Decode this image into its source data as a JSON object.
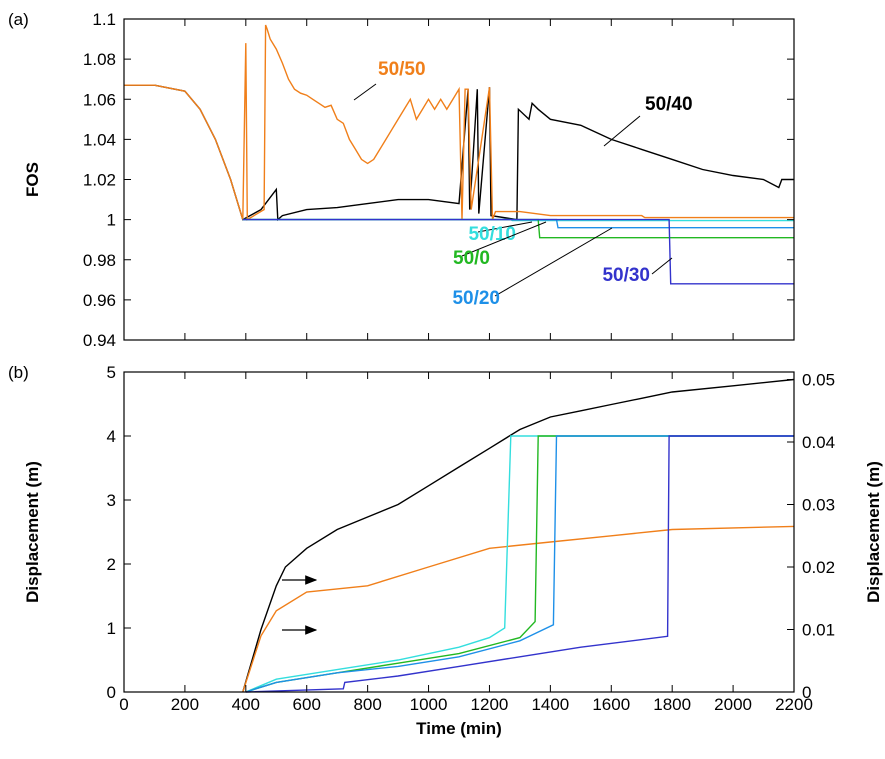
{
  "chart_data": [
    {
      "type": "line",
      "panel_label": "(a)",
      "ylabel": "FOS",
      "xlim": [
        0,
        2200
      ],
      "xticks": [
        0,
        200,
        400,
        600,
        800,
        1000,
        1200,
        1400,
        1600,
        1800,
        2000,
        2200
      ],
      "xtick_labels": false,
      "ylim": [
        0.94,
        1.1
      ],
      "yticks": [
        0.94,
        0.96,
        0.98,
        1,
        1.02,
        1.04,
        1.06,
        1.08,
        1.1
      ],
      "series": [
        {
          "name": "50/40",
          "color": "#000000",
          "x": [
            0,
            100,
            200,
            250,
            300,
            350,
            390,
            450,
            500,
            505,
            520,
            600,
            700,
            800,
            900,
            1000,
            1100,
            1130,
            1135,
            1160,
            1165,
            1200,
            1205,
            1290,
            1295,
            1330,
            1340,
            1360,
            1400,
            1500,
            1600,
            1700,
            1800,
            1900,
            2000,
            2100,
            2150,
            2160,
            2200
          ],
          "values": [
            1.067,
            1.067,
            1.064,
            1.055,
            1.04,
            1.02,
            1.0,
            1.005,
            1.015,
            1.0,
            1.002,
            1.005,
            1.006,
            1.008,
            1.01,
            1.01,
            1.008,
            1.065,
            1.005,
            1.065,
            1.003,
            1.066,
            1.002,
            1.0,
            1.055,
            1.05,
            1.058,
            1.055,
            1.05,
            1.047,
            1.04,
            1.035,
            1.03,
            1.025,
            1.022,
            1.02,
            1.016,
            1.02,
            1.02
          ]
        },
        {
          "name": "50/50",
          "color": "#f07f1a",
          "x": [
            0,
            100,
            200,
            250,
            300,
            350,
            390,
            400,
            405,
            460,
            465,
            470,
            480,
            500,
            520,
            540,
            560,
            580,
            600,
            620,
            640,
            660,
            680,
            700,
            720,
            740,
            760,
            780,
            800,
            820,
            840,
            860,
            880,
            900,
            920,
            940,
            960,
            980,
            1000,
            1020,
            1040,
            1060,
            1080,
            1100,
            1110,
            1120,
            1130,
            1140,
            1200,
            1210,
            1220,
            1300,
            1400,
            1700,
            1710,
            2200
          ],
          "values": [
            1.067,
            1.067,
            1.064,
            1.055,
            1.04,
            1.02,
            1.0,
            1.088,
            1.0,
            1.005,
            1.097,
            1.095,
            1.09,
            1.085,
            1.078,
            1.07,
            1.065,
            1.063,
            1.062,
            1.06,
            1.058,
            1.056,
            1.057,
            1.05,
            1.048,
            1.04,
            1.035,
            1.03,
            1.028,
            1.03,
            1.035,
            1.04,
            1.045,
            1.05,
            1.055,
            1.06,
            1.05,
            1.055,
            1.06,
            1.055,
            1.06,
            1.055,
            1.06,
            1.065,
            1.0,
            1.065,
            1.065,
            1.005,
            1.066,
            1.0,
            1.004,
            1.004,
            1.002,
            1.002,
            1.001,
            1.001
          ]
        },
        {
          "name": "50/10",
          "color": "#33dede",
          "x": [
            390,
            1270,
            1275,
            2200
          ],
          "values": [
            1.0,
            1.0,
            0.9995,
            0.9995
          ]
        },
        {
          "name": "50/0",
          "color": "#22b822",
          "x": [
            390,
            1360,
            1365,
            2200
          ],
          "values": [
            1.0,
            1.0,
            0.991,
            0.991
          ]
        },
        {
          "name": "50/20",
          "color": "#1e90e8",
          "x": [
            390,
            1420,
            1425,
            2200
          ],
          "values": [
            1.0,
            1.0,
            0.996,
            0.996
          ]
        },
        {
          "name": "50/30",
          "color": "#3333cc",
          "x": [
            390,
            1790,
            1795,
            2200
          ],
          "values": [
            1.0,
            1.0,
            0.968,
            0.968
          ]
        }
      ]
    },
    {
      "type": "line",
      "panel_label": "(b)",
      "xlabel": "Time (min)",
      "ylabel": "Displacement (m)",
      "y2label": "Displacement (m)",
      "xlim": [
        0,
        2200
      ],
      "xticks": [
        0,
        200,
        400,
        600,
        800,
        1000,
        1200,
        1400,
        1600,
        1800,
        2000,
        2200
      ],
      "ylim": [
        0,
        5
      ],
      "yticks": [
        0,
        1,
        2,
        3,
        4,
        5
      ],
      "y2lim": [
        0,
        0.0512
      ],
      "y2ticks": [
        0,
        0.01,
        0.02,
        0.03,
        0.04,
        0.05
      ],
      "series": [
        {
          "color": "#000000",
          "axis": "y2",
          "x": [
            390,
            450,
            500,
            530,
            600,
            700,
            800,
            900,
            1000,
            1100,
            1200,
            1300,
            1400,
            1500,
            1600,
            1700,
            1800,
            2000,
            2200
          ],
          "values": [
            0,
            0.01,
            0.017,
            0.02,
            0.023,
            0.026,
            0.028,
            0.03,
            0.033,
            0.036,
            0.039,
            0.042,
            0.044,
            0.045,
            0.046,
            0.047,
            0.048,
            0.049,
            0.05
          ]
        },
        {
          "color": "#f07f1a",
          "axis": "y2",
          "x": [
            390,
            450,
            500,
            600,
            800,
            1000,
            1200,
            1400,
            1600,
            1800,
            2200
          ],
          "values": [
            0,
            0.009,
            0.013,
            0.016,
            0.017,
            0.02,
            0.023,
            0.024,
            0.025,
            0.026,
            0.0265
          ]
        },
        {
          "color": "#33dede",
          "x": [
            400,
            500,
            700,
            900,
            1100,
            1200,
            1250,
            1270,
            2200
          ],
          "values": [
            0,
            0.2,
            0.35,
            0.5,
            0.7,
            0.85,
            1.0,
            4.0,
            4.0
          ]
        },
        {
          "color": "#22b822",
          "x": [
            400,
            500,
            700,
            900,
            1100,
            1300,
            1350,
            1360,
            2200
          ],
          "values": [
            0,
            0.15,
            0.3,
            0.45,
            0.6,
            0.85,
            1.1,
            4.0,
            4.0
          ]
        },
        {
          "color": "#1e90e8",
          "x": [
            400,
            500,
            700,
            900,
            1100,
            1300,
            1410,
            1420,
            2200
          ],
          "values": [
            0,
            0.15,
            0.3,
            0.4,
            0.55,
            0.8,
            1.05,
            4.0,
            4.0
          ]
        },
        {
          "color": "#3333cc",
          "x": [
            400,
            720,
            725,
            900,
            1100,
            1300,
            1500,
            1785,
            1790,
            2200
          ],
          "values": [
            0,
            0.05,
            0.15,
            0.25,
            0.4,
            0.55,
            0.7,
            0.87,
            4.0,
            4.0
          ]
        }
      ]
    }
  ]
}
